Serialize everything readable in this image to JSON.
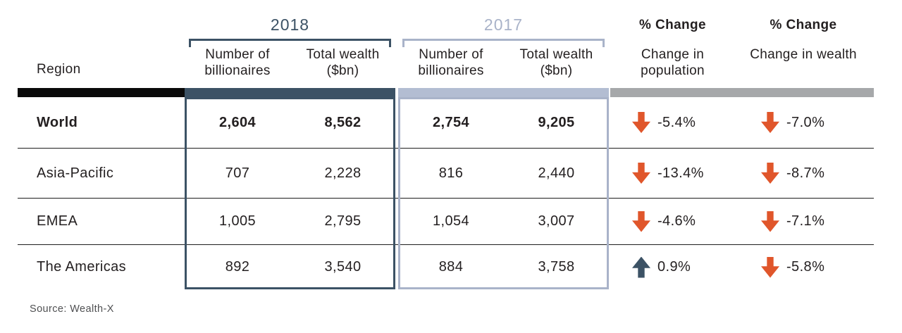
{
  "header": {
    "region_label": "Region",
    "groups": [
      {
        "year": "2018",
        "columns": [
          "Number of billionaires",
          "Total wealth ($bn)"
        ]
      },
      {
        "year": "2017",
        "columns": [
          "Number of billionaires",
          "Total wealth ($bn)"
        ]
      }
    ],
    "change_columns": [
      {
        "title": "% Change",
        "subtitle": "Change in population"
      },
      {
        "title": "% Change",
        "subtitle": "Change in wealth"
      }
    ]
  },
  "rows": [
    {
      "region": "World",
      "billionaires_2018": "2,604",
      "wealth_2018": "8,562",
      "billionaires_2017": "2,754",
      "wealth_2017": "9,205",
      "population_change": "-5.4%",
      "population_change_direction": "down",
      "wealth_change": "-7.0%",
      "wealth_change_direction": "down"
    },
    {
      "region": "Asia-Pacific",
      "billionaires_2018": "707",
      "wealth_2018": "2,228",
      "billionaires_2017": "816",
      "wealth_2017": "2,440",
      "population_change": "-13.4%",
      "population_change_direction": "down",
      "wealth_change": "-8.7%",
      "wealth_change_direction": "down"
    },
    {
      "region": "EMEA",
      "billionaires_2018": "1,005",
      "wealth_2018": "2,795",
      "billionaires_2017": "1,054",
      "wealth_2017": "3,007",
      "population_change": "-4.6%",
      "population_change_direction": "down",
      "wealth_change": "-7.1%",
      "wealth_change_direction": "down"
    },
    {
      "region": "The Americas",
      "billionaires_2018": "892",
      "wealth_2018": "3,540",
      "billionaires_2017": "884",
      "wealth_2017": "3,758",
      "population_change": "0.9%",
      "population_change_direction": "up",
      "wealth_change": "-5.8%",
      "wealth_change_direction": "down"
    }
  ],
  "source": "Source: Wealth-X",
  "colors": {
    "accent_2018": "#3c5265",
    "accent_2017": "#a9b3c9",
    "region_bar": "#0a0a0a",
    "change_bar": "#a6a8aa",
    "down_arrow": "#e0562b",
    "up_arrow": "#3c5265"
  },
  "chart_data": {
    "type": "table",
    "title": "Billionaire population and wealth by region, 2018 vs 2017",
    "columns": [
      "Region",
      "2018 Number of billionaires",
      "2018 Total wealth ($bn)",
      "2017 Number of billionaires",
      "2017 Total wealth ($bn)",
      "% Change in population",
      "% Change in wealth"
    ],
    "rows": [
      [
        "World",
        2604,
        8562,
        2754,
        9205,
        -5.4,
        -7.0
      ],
      [
        "Asia-Pacific",
        707,
        2228,
        816,
        2440,
        -13.4,
        -8.7
      ],
      [
        "EMEA",
        1005,
        2795,
        1054,
        3007,
        -4.6,
        -7.1
      ],
      [
        "The Americas",
        892,
        3540,
        884,
        3758,
        0.9,
        -5.8
      ]
    ],
    "source": "Wealth-X"
  }
}
